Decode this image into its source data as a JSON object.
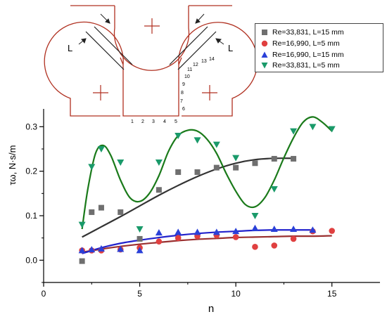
{
  "chart_data": {
    "type": "scatter",
    "xlabel": "n",
    "ylabel": "τω, N·s/m",
    "xlim": [
      0,
      17.5
    ],
    "ylim": [
      -0.05,
      0.34
    ],
    "xticks": [
      "0",
      "5",
      "10",
      "15"
    ],
    "yticks": [
      "0.0",
      "0.1",
      "0.2",
      "0.3"
    ],
    "legend_position": "top-right",
    "series": [
      {
        "name": "Re=33,831, L=15 mm",
        "marker": "square",
        "color": "#6f6f6f",
        "x": [
          2,
          2.5,
          3,
          4,
          5,
          6,
          7,
          8,
          9,
          10,
          11,
          12,
          13
        ],
        "y": [
          -0.002,
          0.108,
          0.118,
          0.108,
          0.048,
          0.158,
          0.198,
          0.198,
          0.208,
          0.208,
          0.218,
          0.228,
          0.228
        ],
        "fit_color": "#333333",
        "fit": [
          [
            2,
            0.052
          ],
          [
            3,
            0.075
          ],
          [
            4,
            0.098
          ],
          [
            5,
            0.122
          ],
          [
            6,
            0.146
          ],
          [
            7,
            0.168
          ],
          [
            8,
            0.188
          ],
          [
            9,
            0.205
          ],
          [
            10,
            0.218
          ],
          [
            11,
            0.226
          ],
          [
            12,
            0.229
          ],
          [
            13,
            0.229
          ]
        ]
      },
      {
        "name": "Re=16,990, L=5 mm",
        "marker": "circle",
        "color": "#e04040",
        "x": [
          2,
          2.5,
          3,
          4,
          5,
          6,
          7,
          8,
          9,
          10,
          11,
          12,
          13,
          14,
          15
        ],
        "y": [
          0.022,
          0.022,
          0.022,
          0.024,
          0.028,
          0.042,
          0.05,
          0.054,
          0.056,
          0.052,
          0.03,
          0.033,
          0.048,
          0.065,
          0.066
        ],
        "fit_color": "#9a3030",
        "fit": [
          [
            2,
            0.018
          ],
          [
            3,
            0.025
          ],
          [
            4,
            0.031
          ],
          [
            5,
            0.036
          ],
          [
            6,
            0.04
          ],
          [
            7,
            0.044
          ],
          [
            8,
            0.047
          ],
          [
            9,
            0.049
          ],
          [
            10,
            0.051
          ],
          [
            11,
            0.052
          ],
          [
            12,
            0.053
          ],
          [
            13,
            0.054
          ],
          [
            14,
            0.054
          ],
          [
            15,
            0.055
          ]
        ]
      },
      {
        "name": "Re=16,990, L=15 mm",
        "marker": "triangle-up",
        "color": "#2a40d8",
        "x": [
          2,
          2.5,
          3,
          4,
          5,
          6,
          7,
          8,
          9,
          10,
          11,
          12,
          13,
          14
        ],
        "y": [
          0.022,
          0.024,
          0.026,
          0.025,
          0.022,
          0.062,
          0.063,
          0.063,
          0.063,
          0.065,
          0.072,
          0.07,
          0.07,
          0.068
        ],
        "fit_color": "#2222cc",
        "fit": [
          [
            2,
            0.015
          ],
          [
            3,
            0.028
          ],
          [
            4,
            0.038
          ],
          [
            5,
            0.045
          ],
          [
            6,
            0.051
          ],
          [
            7,
            0.056
          ],
          [
            8,
            0.06
          ],
          [
            9,
            0.063
          ],
          [
            10,
            0.065
          ],
          [
            11,
            0.067
          ],
          [
            12,
            0.068
          ],
          [
            13,
            0.068
          ],
          [
            14,
            0.068
          ]
        ]
      },
      {
        "name": "Re=33,831, L=5 mm",
        "marker": "triangle-down",
        "color": "#1a9a6a",
        "x": [
          2,
          2.5,
          3,
          4,
          5,
          6,
          7,
          8,
          9,
          10,
          11,
          12,
          13,
          14,
          15
        ],
        "y": [
          0.08,
          0.21,
          0.25,
          0.22,
          0.07,
          0.22,
          0.28,
          0.27,
          0.26,
          0.23,
          0.1,
          0.16,
          0.29,
          0.3,
          0.295
        ],
        "fit_color": "#1a7a1a",
        "fit": [
          [
            2,
            0.07
          ],
          [
            2.3,
            0.16
          ],
          [
            2.7,
            0.24
          ],
          [
            3.1,
            0.258
          ],
          [
            3.5,
            0.235
          ],
          [
            4,
            0.18
          ],
          [
            4.5,
            0.14
          ],
          [
            5,
            0.132
          ],
          [
            5.5,
            0.15
          ],
          [
            6,
            0.19
          ],
          [
            6.5,
            0.245
          ],
          [
            7,
            0.28
          ],
          [
            7.5,
            0.292
          ],
          [
            8,
            0.29
          ],
          [
            8.5,
            0.272
          ],
          [
            9,
            0.24
          ],
          [
            9.5,
            0.195
          ],
          [
            10,
            0.155
          ],
          [
            10.5,
            0.125
          ],
          [
            11,
            0.12
          ],
          [
            11.5,
            0.14
          ],
          [
            12,
            0.18
          ],
          [
            12.5,
            0.23
          ],
          [
            13,
            0.275
          ],
          [
            13.5,
            0.31
          ],
          [
            14,
            0.322
          ],
          [
            14.5,
            0.31
          ],
          [
            15,
            0.29
          ]
        ]
      }
    ]
  },
  "diagram": {
    "label_left": "L",
    "label_right": "L",
    "numbers": [
      "1",
      "2",
      "3",
      "4",
      "5",
      "6",
      "7",
      "8",
      "9",
      "10",
      "11",
      "12",
      "13",
      "14"
    ]
  },
  "colors": {
    "geometry": "#b03020",
    "axis": "#000000",
    "arrows": "#000000"
  }
}
